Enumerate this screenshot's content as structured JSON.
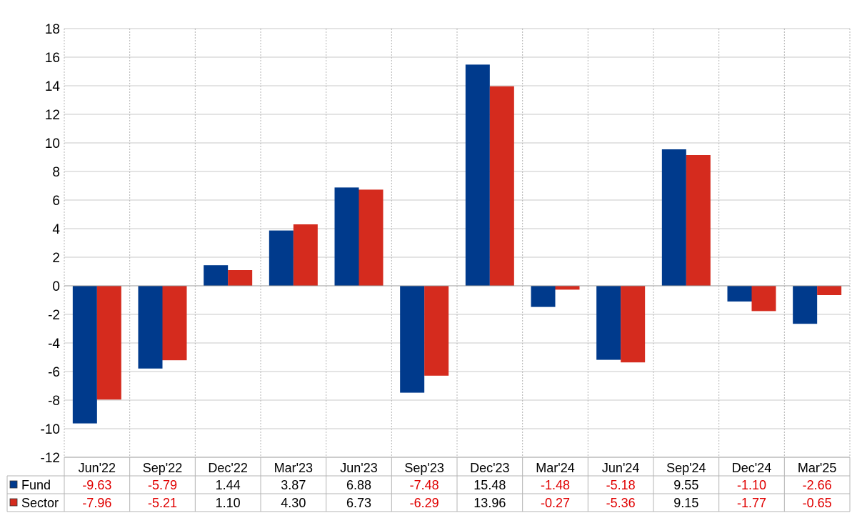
{
  "chart_data": {
    "type": "bar",
    "categories": [
      "Jun'22",
      "Sep'22",
      "Dec'22",
      "Mar'23",
      "Jun'23",
      "Sep'23",
      "Dec'23",
      "Mar'24",
      "Jun'24",
      "Sep'24",
      "Dec'24",
      "Mar'25"
    ],
    "series": [
      {
        "name": "Fund",
        "color": "#003a8c",
        "values": [
          -9.63,
          -5.79,
          1.44,
          3.87,
          6.88,
          -7.48,
          15.48,
          -1.48,
          -5.18,
          9.55,
          -1.1,
          -2.66
        ],
        "labels": [
          "-9.63",
          "-5.79",
          "1.44",
          "3.87",
          "6.88",
          "-7.48",
          "15.48",
          "-1.48",
          "-5.18",
          "9.55",
          "-1.10",
          "-2.66"
        ]
      },
      {
        "name": "Sector",
        "color": "#d52b1e",
        "values": [
          -7.96,
          -5.21,
          1.1,
          4.3,
          6.73,
          -6.29,
          13.96,
          -0.27,
          -5.36,
          9.15,
          -1.77,
          -0.65
        ],
        "labels": [
          "-7.96",
          "-5.21",
          "1.10",
          "4.30",
          "6.73",
          "-6.29",
          "13.96",
          "-0.27",
          "-5.36",
          "9.15",
          "-1.77",
          "-0.65"
        ]
      }
    ],
    "ylim": [
      -12,
      18
    ],
    "yticks": [
      -12,
      -10,
      -8,
      -6,
      -4,
      -2,
      0,
      2,
      4,
      6,
      8,
      10,
      12,
      14,
      16,
      18
    ],
    "grid": true,
    "legend": "data-table-below",
    "negative_value_color": "#e00000",
    "positive_value_color": "#000000"
  }
}
